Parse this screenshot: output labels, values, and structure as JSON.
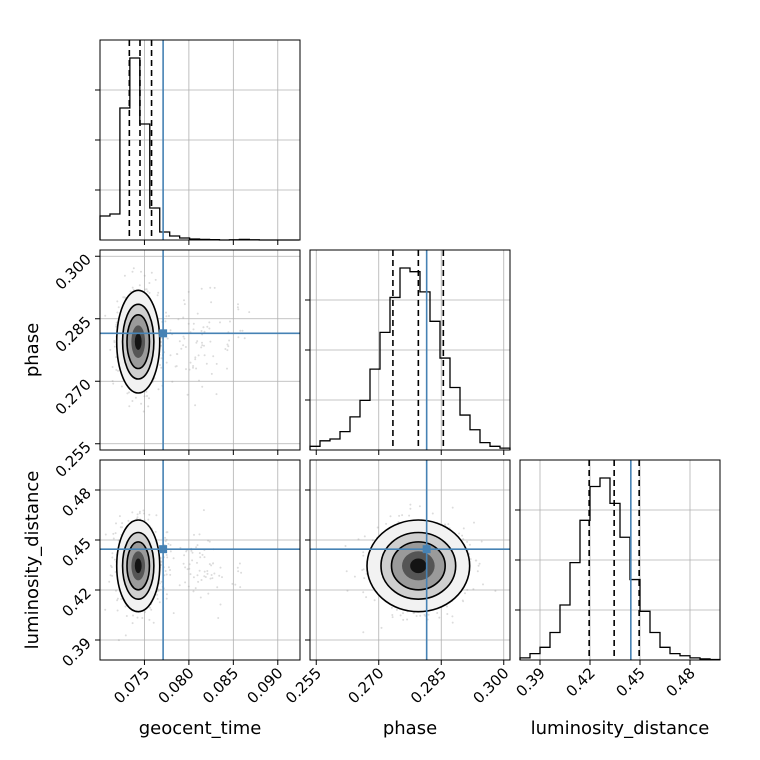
{
  "chart_data": {
    "type": "corner",
    "parameters": [
      {
        "key": "geocent_time",
        "label": "geocent_time",
        "lim": [
          0.07,
          0.0925
        ],
        "ticks": [
          "0.075",
          "0.080",
          "0.085",
          "0.090"
        ],
        "tick_values": [
          0.075,
          0.08,
          0.085,
          0.09
        ],
        "truth": 0.0771,
        "quantiles": [
          0.0733,
          0.0745,
          0.0758
        ],
        "peak": 0.0742
      },
      {
        "key": "phase",
        "label": "phase",
        "lim": [
          0.2535,
          0.3015
        ],
        "ticks": [
          "0.255",
          "0.270",
          "0.285",
          "0.300"
        ],
        "tick_values": [
          0.255,
          0.27,
          0.285,
          0.3
        ],
        "truth": 0.2815,
        "quantiles": [
          0.2734,
          0.2795,
          0.2855
        ],
        "peak": 0.2795
      },
      {
        "key": "luminosity_distance",
        "label": "luminosity_distance",
        "lim": [
          0.378,
          0.498
        ],
        "ticks": [
          "0.39",
          "0.42",
          "0.45",
          "0.48"
        ],
        "tick_values": [
          0.39,
          0.42,
          0.45,
          0.48
        ],
        "truth": 0.4445,
        "quantiles": [
          0.4195,
          0.4345,
          0.4495
        ],
        "peak": 0.4345
      }
    ],
    "hist_1d": {
      "geocent_time": {
        "edges_start": 0.07,
        "bin_width": 0.00112,
        "counts": [
          0.12,
          0.13,
          0.66,
          0.91,
          0.58,
          0.16,
          0.04,
          0.02,
          0.01,
          0.005,
          0.003,
          0.002,
          0,
          0.001,
          0.003,
          0.001,
          0,
          0,
          0,
          0
        ]
      },
      "phase": {
        "edges_start": 0.2535,
        "bin_width": 0.0024,
        "counts": [
          0.02,
          0.05,
          0.06,
          0.1,
          0.18,
          0.27,
          0.44,
          0.64,
          0.83,
          0.99,
          0.97,
          0.86,
          0.7,
          0.5,
          0.34,
          0.19,
          0.11,
          0.04,
          0.02,
          0.01
        ]
      },
      "luminosity_distance": {
        "edges_start": 0.378,
        "bin_width": 0.006,
        "counts": [
          0.01,
          0.03,
          0.06,
          0.13,
          0.26,
          0.46,
          0.66,
          0.82,
          0.86,
          0.74,
          0.58,
          0.38,
          0.23,
          0.13,
          0.06,
          0.03,
          0.02,
          0.01,
          0.005,
          0.002
        ]
      }
    },
    "pairs": [
      {
        "x": "geocent_time",
        "y": "phase",
        "center": [
          0.0743,
          0.2795
        ],
        "spread": [
          0.0011,
          0.0056
        ],
        "tilt": 0.0
      },
      {
        "x": "geocent_time",
        "y": "luminosity_distance",
        "center": [
          0.0743,
          0.4345
        ],
        "spread": [
          0.0011,
          0.0125
        ],
        "tilt": 0.0
      },
      {
        "x": "phase",
        "y": "luminosity_distance",
        "center": [
          0.2795,
          0.4345
        ],
        "spread": [
          0.0056,
          0.0125
        ],
        "tilt": 0.0
      }
    ],
    "truth_color": "#4682b4",
    "hist_color": "#000000",
    "grid": true
  }
}
